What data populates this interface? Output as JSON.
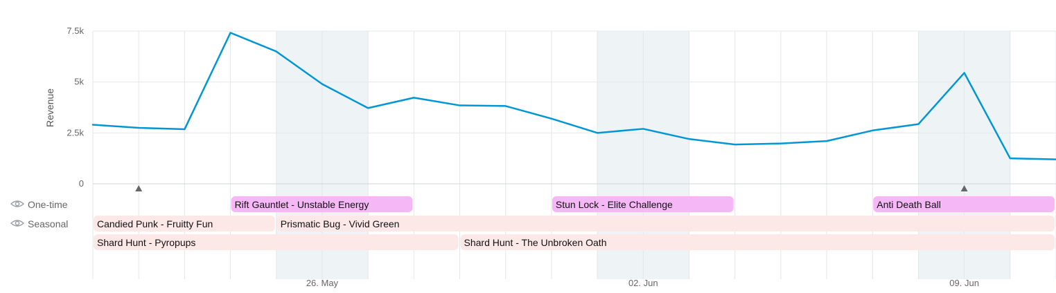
{
  "chart_data": {
    "type": "line",
    "ylabel": "Revenue",
    "ylim": [
      0,
      7500
    ],
    "yticks": [
      0,
      2500,
      5000,
      7500
    ],
    "ytick_labels": [
      "0",
      "2.5k",
      "5k",
      "7.5k"
    ],
    "x": [
      "2025-05-21",
      "2025-05-22",
      "2025-05-23",
      "2025-05-24",
      "2025-05-25",
      "2025-05-26",
      "2025-05-27",
      "2025-05-28",
      "2025-05-29",
      "2025-05-30",
      "2025-05-31",
      "2025-06-01",
      "2025-06-02",
      "2025-06-03",
      "2025-06-04",
      "2025-06-05",
      "2025-06-06",
      "2025-06-07",
      "2025-06-08",
      "2025-06-09",
      "2025-06-10",
      "2025-06-11"
    ],
    "values": [
      2900,
      2750,
      2680,
      7420,
      6500,
      4900,
      3720,
      4230,
      3850,
      3820,
      3200,
      2500,
      2700,
      2200,
      1930,
      1980,
      2100,
      2620,
      2930,
      5450,
      1250,
      1200
    ],
    "xtick_labels": [
      {
        "date": "2025-05-26",
        "label": "26. May"
      },
      {
        "date": "2025-06-02",
        "label": "02. Jun"
      },
      {
        "date": "2025-06-09",
        "label": "09. Jun"
      }
    ],
    "weekend_bands": [
      {
        "start": "2025-05-25",
        "end": "2025-05-27"
      },
      {
        "start": "2025-06-01",
        "end": "2025-06-03"
      },
      {
        "start": "2025-06-08",
        "end": "2025-06-10"
      }
    ],
    "markers": [
      "2025-05-22",
      "2025-06-09"
    ],
    "grid": true,
    "line_color": "#0096d6"
  },
  "event_rows": [
    {
      "label": "One-time",
      "icon": "eye-icon",
      "color": "#f5b7f5"
    },
    {
      "label": "Seasonal",
      "icon": "eye-icon",
      "color": "#fde8e8"
    }
  ],
  "events": [
    {
      "name": "Rift Gauntlet - Unstable Energy",
      "start": "2025-05-24",
      "end": "2025-05-28",
      "row": 0,
      "lane": 0
    },
    {
      "name": "Stun Lock - Elite Challenge",
      "start": "2025-05-31",
      "end": "2025-06-04",
      "row": 0,
      "lane": 0
    },
    {
      "name": "Anti Death Ball",
      "start": "2025-06-07",
      "end": "2025-06-11",
      "row": 0,
      "lane": 0
    },
    {
      "name": "Candied Punk - Fruitty Fun",
      "start": "2025-05-21",
      "end": "2025-05-25",
      "row": 1,
      "lane": 0
    },
    {
      "name": "Prismatic Bug - Vivid Green",
      "start": "2025-05-25",
      "end": "2025-06-11",
      "row": 1,
      "lane": 0
    },
    {
      "name": "Shard Hunt - Pyropups",
      "start": "2025-05-21",
      "end": "2025-05-29",
      "row": 1,
      "lane": 1
    },
    {
      "name": "Shard Hunt - The Unbroken Oath",
      "start": "2025-05-29",
      "end": "2025-06-11",
      "row": 1,
      "lane": 1
    }
  ]
}
